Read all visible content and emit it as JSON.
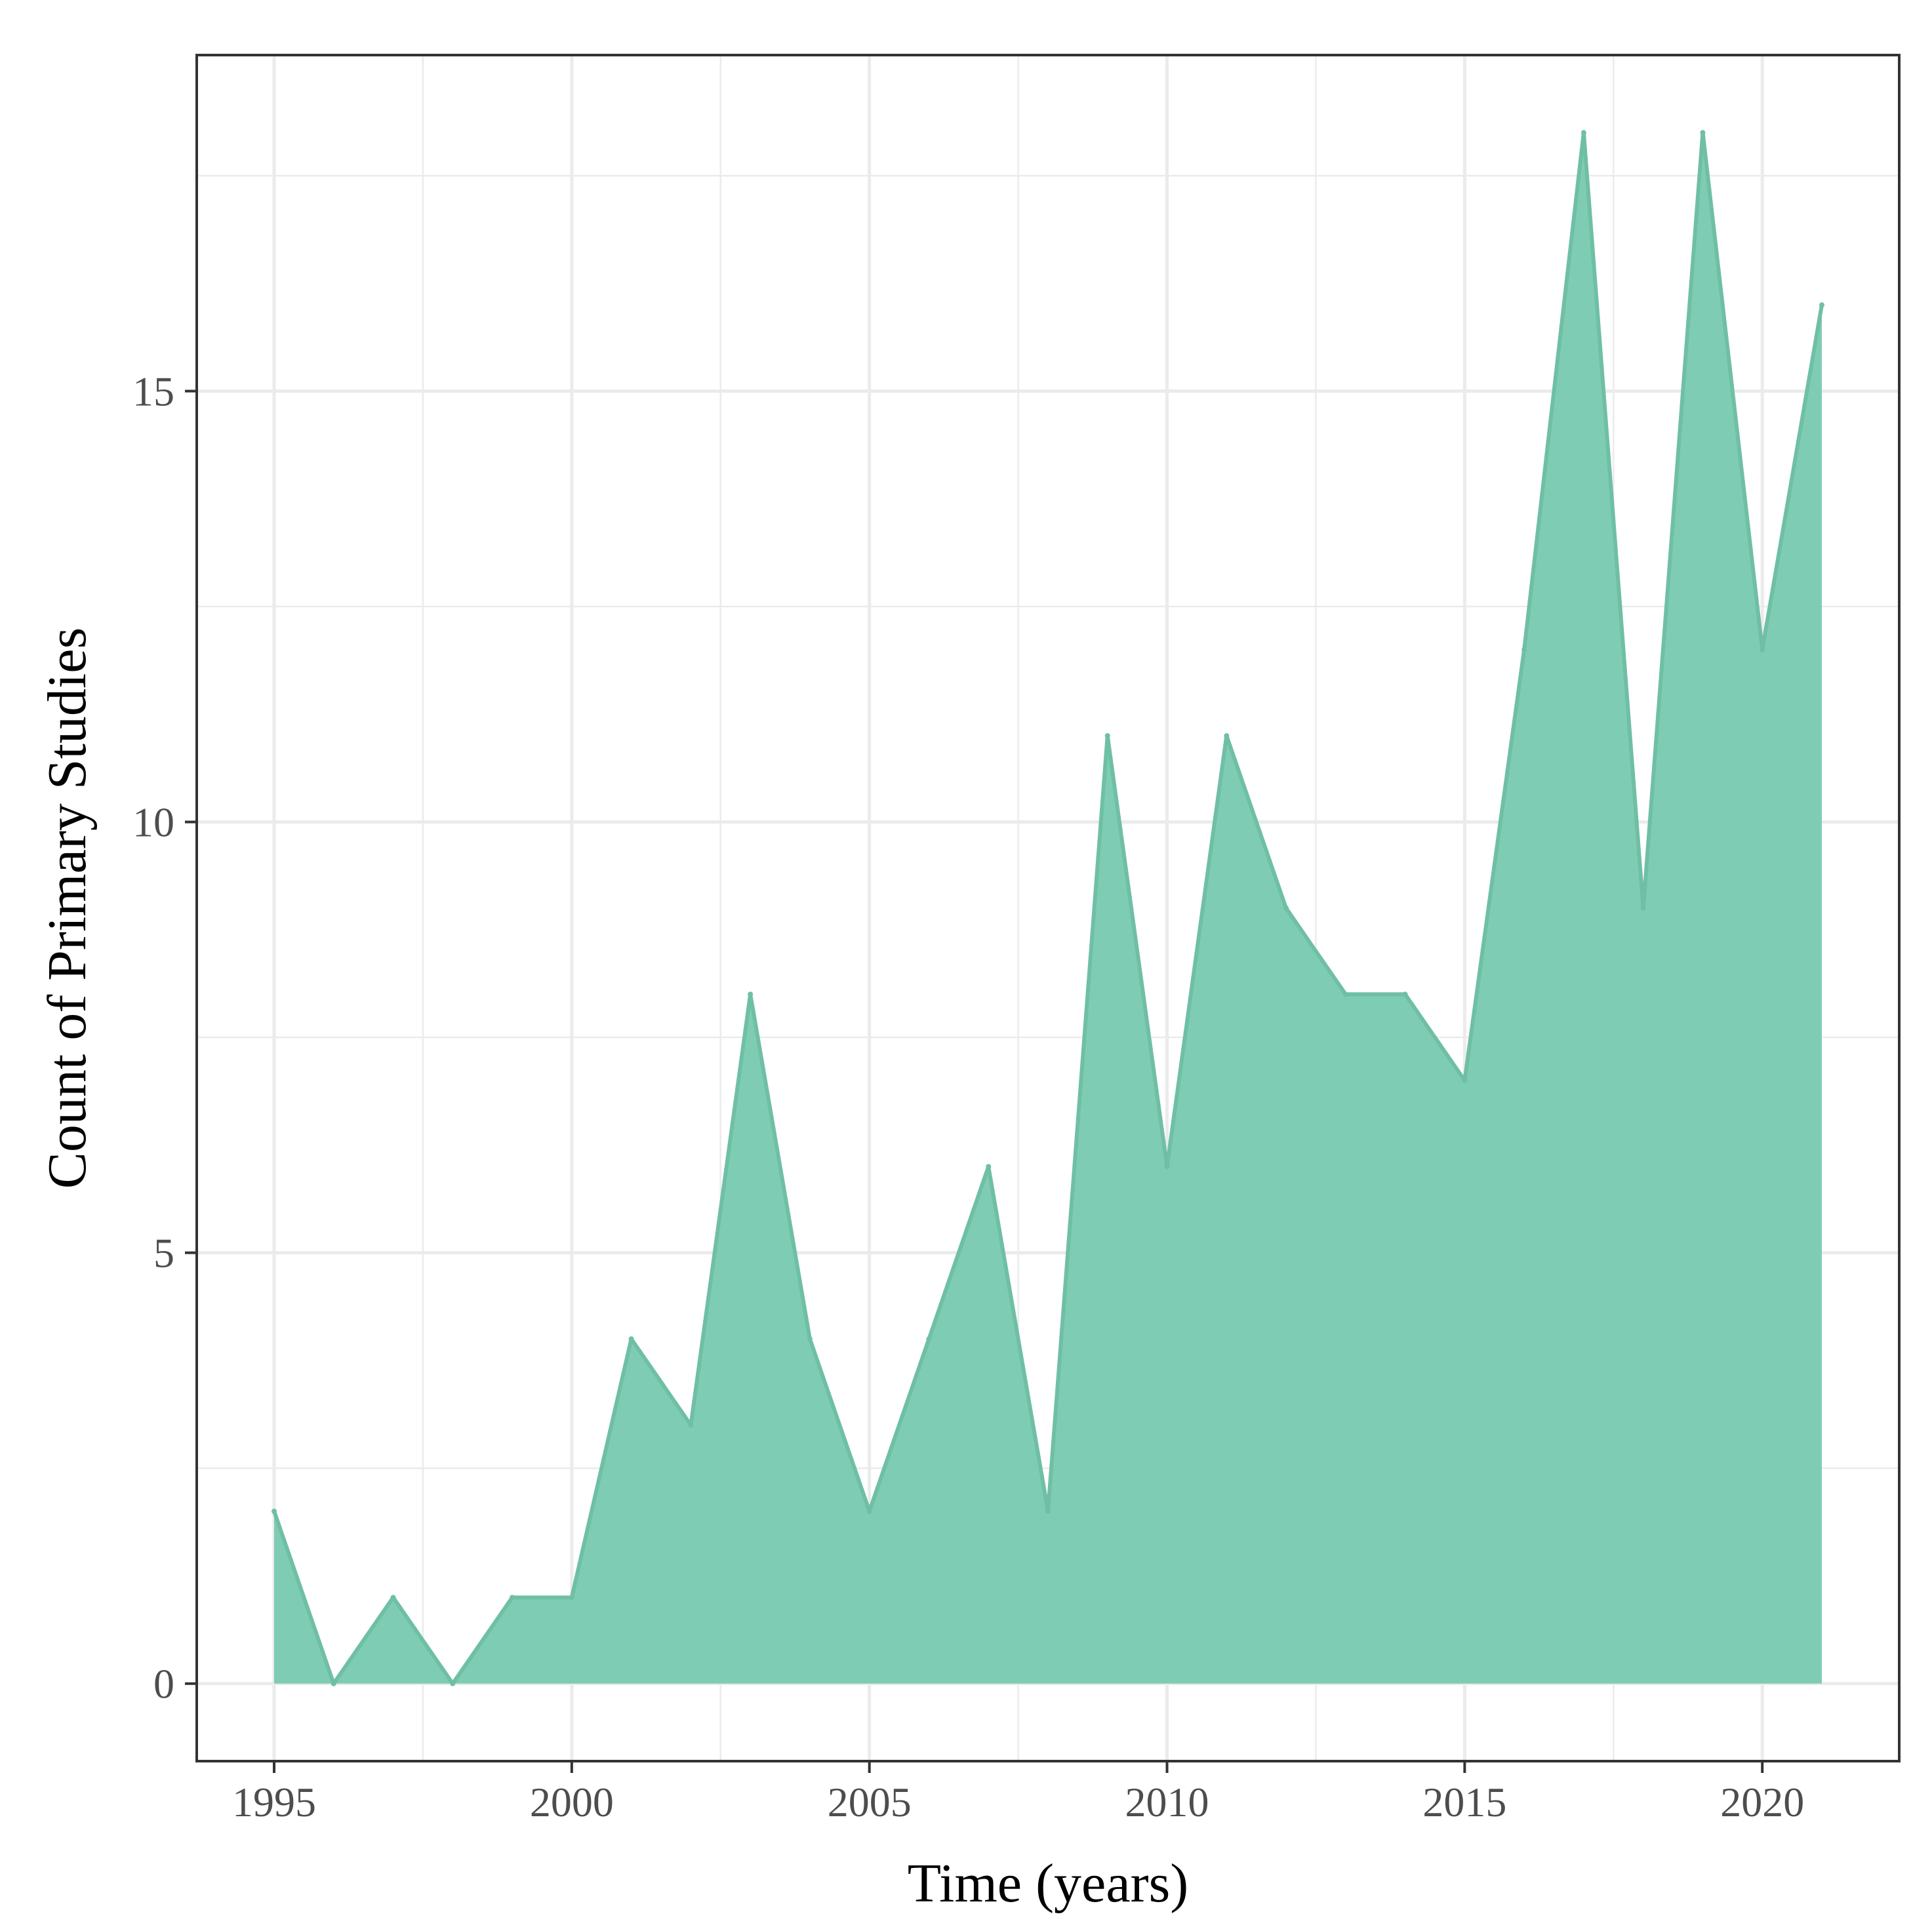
{
  "chart_data": {
    "type": "area",
    "title": "",
    "xlabel": "Time (years)",
    "ylabel": "Count of Primary Studies",
    "x": [
      1995,
      1996,
      1997,
      1998,
      1999,
      2000,
      2001,
      2002,
      2003,
      2004,
      2005,
      2006,
      2007,
      2008,
      2009,
      2010,
      2011,
      2012,
      2013,
      2014,
      2015,
      2016,
      2017,
      2018,
      2019,
      2020,
      2021
    ],
    "series": [
      {
        "values": [
          2,
          0,
          1,
          0,
          1,
          1,
          4,
          3,
          8,
          4,
          2,
          4,
          6,
          2,
          11,
          6,
          11,
          9,
          8,
          8,
          7,
          12,
          18,
          9,
          18,
          12,
          16
        ]
      }
    ],
    "xlim": [
      1993.7,
      2022.3
    ],
    "ylim": [
      -0.9,
      18.9
    ],
    "x_ticks": [
      1995,
      2000,
      2005,
      2010,
      2015,
      2020
    ],
    "y_ticks": [
      0,
      5,
      10,
      15
    ],
    "x_tick_labels": [
      "1995",
      "2000",
      "2005",
      "2010",
      "2015",
      "2020"
    ],
    "y_tick_labels": [
      "0",
      "5",
      "10",
      "15"
    ],
    "grid": true,
    "legend": "none",
    "colors": {
      "fill": "#7fccb5",
      "line": "#6fbfa5",
      "grid": "#ebebeb",
      "frame": "#333333",
      "tick_text": "#4d4d4d"
    }
  }
}
